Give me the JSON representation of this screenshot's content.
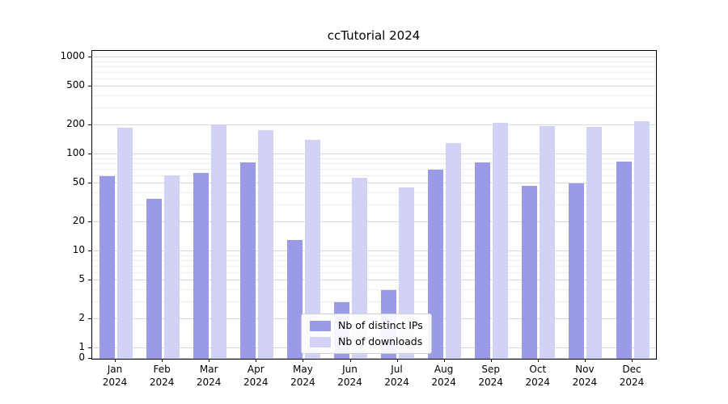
{
  "chart_data": {
    "type": "bar",
    "title": "ccTutorial 2024",
    "categories": [
      "Jan 2024",
      "Feb 2024",
      "Mar 2024",
      "Apr 2024",
      "May 2024",
      "Jun 2024",
      "Jul 2024",
      "Aug 2024",
      "Sep 2024",
      "Oct 2024",
      "Nov 2024",
      "Dec 2024"
    ],
    "series": [
      {
        "name": "Nb of distinct IPs",
        "color": "#9a9ae9",
        "values": [
          60,
          35,
          64,
          82,
          13,
          3,
          4,
          70,
          83,
          47,
          50,
          85
        ]
      },
      {
        "name": "Nb of downloads",
        "color": "#d2d2f6",
        "values": [
          188,
          61,
          205,
          177,
          142,
          57,
          46,
          130,
          210,
          197,
          192,
          220
        ]
      }
    ],
    "y_ticks": [
      0,
      1,
      2,
      5,
      10,
      20,
      50,
      100,
      200,
      500,
      1000
    ],
    "y_scale": "symlog",
    "ylim": [
      0,
      1200
    ],
    "xlabel": "",
    "ylabel": "",
    "grid": "horizontal",
    "legend_position": "bottom-center"
  }
}
